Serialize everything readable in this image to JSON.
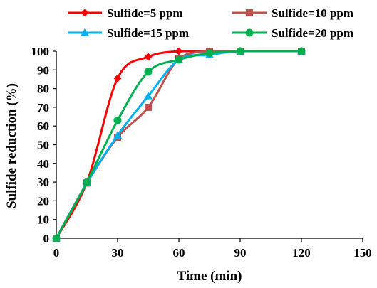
{
  "chart_data": {
    "type": "line",
    "title": "",
    "xlabel": "Time (min)",
    "ylabel": "Sulfide reduction (%)",
    "xlim": [
      0,
      150
    ],
    "ylim": [
      0,
      100
    ],
    "x_ticks": [
      0,
      30,
      60,
      90,
      120,
      150
    ],
    "y_ticks": [
      0,
      10,
      20,
      30,
      40,
      50,
      60,
      70,
      80,
      90,
      100
    ],
    "grid": false,
    "legend_position": "top",
    "series": [
      {
        "name": "Sulfide=5 ppm",
        "color": "#ff0000",
        "marker": "diamond",
        "x": [
          0,
          15,
          30,
          45,
          60,
          75,
          90,
          120
        ],
        "y": [
          0,
          30,
          85.5,
          97,
          100,
          100,
          100,
          100
        ]
      },
      {
        "name": "Sulfide=10 ppm",
        "color": "#c0504d",
        "marker": "square",
        "x": [
          0,
          15,
          30,
          45,
          60,
          75,
          90,
          120
        ],
        "y": [
          0,
          29.5,
          54,
          70,
          96,
          100,
          100,
          100
        ]
      },
      {
        "name": "Sulfide=15 ppm",
        "color": "#00b0f0",
        "marker": "triangle",
        "x": [
          0,
          15,
          30,
          45,
          60,
          75,
          90,
          120
        ],
        "y": [
          0,
          29.5,
          55,
          76,
          95.5,
          98,
          100,
          100
        ]
      },
      {
        "name": "Sulfide=20 ppm",
        "color": "#00b050",
        "marker": "circle",
        "x": [
          0,
          15,
          30,
          45,
          60,
          75,
          90,
          120
        ],
        "y": [
          0,
          30,
          63,
          89,
          95.5,
          99,
          100,
          100
        ]
      }
    ]
  }
}
